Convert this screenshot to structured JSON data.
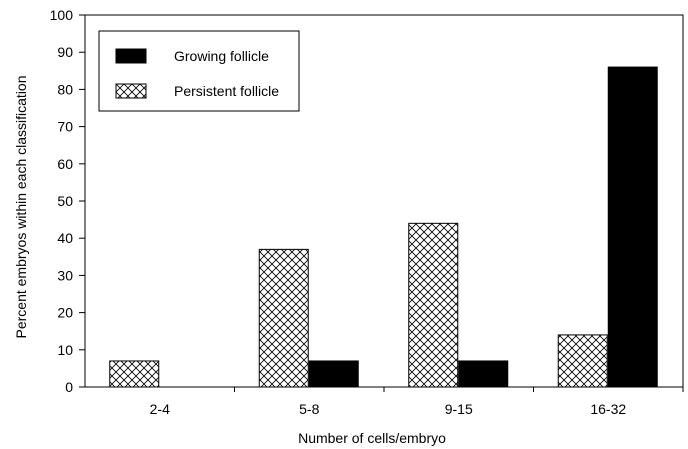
{
  "chart_data": {
    "type": "bar",
    "title": "",
    "xlabel": "Number of cells/embryo",
    "ylabel": "Percent embryos within each classification",
    "categories": [
      "2-4",
      "5-8",
      "9-15",
      "16-32"
    ],
    "ylim": [
      0,
      100
    ],
    "yticks": [
      0,
      10,
      20,
      30,
      40,
      50,
      60,
      70,
      80,
      90,
      100
    ],
    "grid": false,
    "legend_position": "top-left",
    "series": [
      {
        "name": "Persistent follicle",
        "values": [
          7,
          37,
          44,
          14
        ],
        "fill": "crosshatch",
        "color": "#000000"
      },
      {
        "name": "Growing follicle",
        "values": [
          0,
          7,
          7,
          86
        ],
        "fill": "solid",
        "color": "#000000"
      }
    ],
    "legend_order": [
      1,
      0
    ]
  }
}
